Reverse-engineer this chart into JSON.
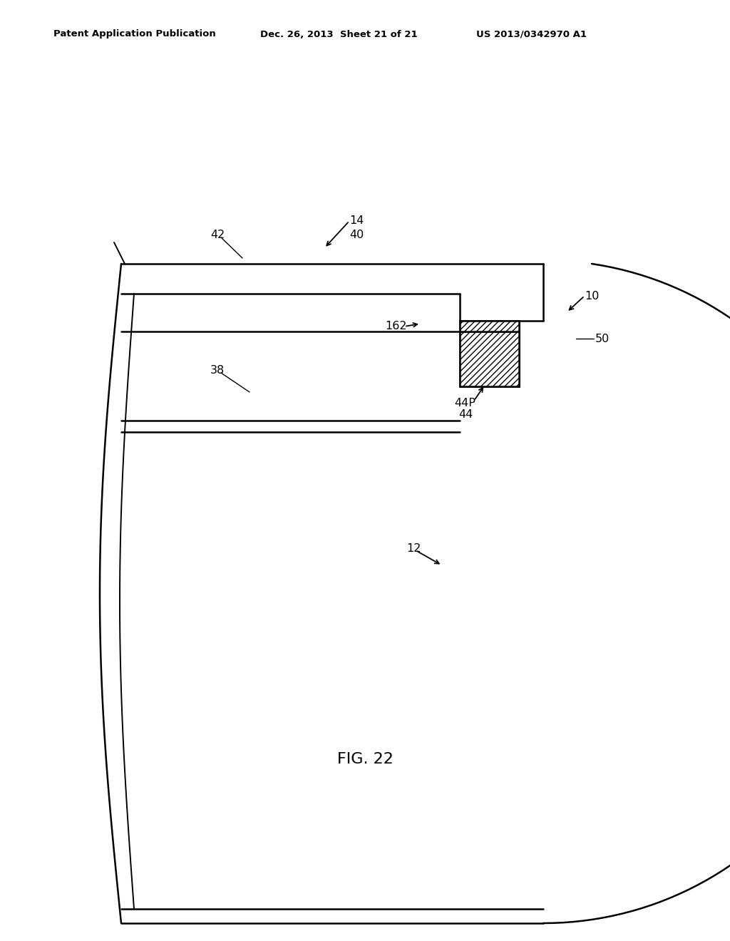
{
  "title": "FIG. 22",
  "header_left": "Patent Application Publication",
  "header_mid": "Dec. 26, 2013  Sheet 21 of 21",
  "header_right": "US 2013/0342970 A1",
  "bg_color": "#ffffff"
}
